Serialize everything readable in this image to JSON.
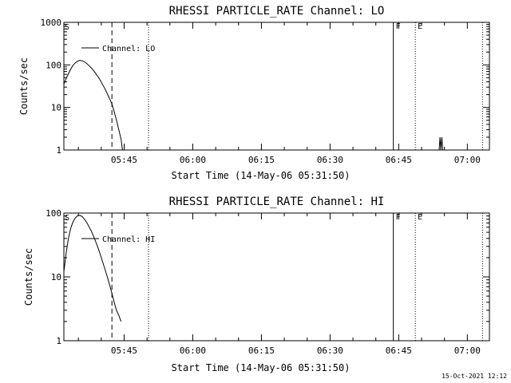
{
  "footer": {
    "timestamp": "15-Oct-2021 12:12"
  },
  "colors": {
    "background": "#ffffff",
    "foreground": "#000000"
  },
  "chart_data": [
    {
      "type": "line",
      "title": "RHESSI PARTICLE_RATE Channel: LO",
      "xlabel": "Start Time (14-May-06 05:31:50)",
      "ylabel": "Counts/sec",
      "yscale": "log",
      "ylim": [
        1,
        1000
      ],
      "yticks": [
        {
          "value": 1,
          "label": "1"
        },
        {
          "value": 10,
          "label": "10"
        },
        {
          "value": 100,
          "label": "100"
        },
        {
          "value": 1000,
          "label": "1000"
        }
      ],
      "xlim_minutes": [
        0,
        93
      ],
      "xticks": [
        {
          "minute": 13.17,
          "label": "05:45"
        },
        {
          "minute": 28.17,
          "label": "06:00"
        },
        {
          "minute": 43.17,
          "label": "06:15"
        },
        {
          "minute": 58.17,
          "label": "06:30"
        },
        {
          "minute": 73.17,
          "label": "06:45"
        },
        {
          "minute": 88.17,
          "label": "07:00"
        }
      ],
      "legend": {
        "label": "Channel: LO",
        "placement": "top-left"
      },
      "series": [
        {
          "name": "Channel: LO",
          "points": [
            {
              "x": 0.0,
              "y": 35
            },
            {
              "x": 0.5,
              "y": 48
            },
            {
              "x": 1.0,
              "y": 62
            },
            {
              "x": 1.5,
              "y": 80
            },
            {
              "x": 2.0,
              "y": 98
            },
            {
              "x": 2.5,
              "y": 112
            },
            {
              "x": 3.0,
              "y": 122
            },
            {
              "x": 3.5,
              "y": 128
            },
            {
              "x": 4.0,
              "y": 125
            },
            {
              "x": 4.5,
              "y": 118
            },
            {
              "x": 5.0,
              "y": 108
            },
            {
              "x": 5.5,
              "y": 96
            },
            {
              "x": 6.0,
              "y": 85
            },
            {
              "x": 6.5,
              "y": 73
            },
            {
              "x": 7.0,
              "y": 62
            },
            {
              "x": 7.5,
              "y": 52
            },
            {
              "x": 8.0,
              "y": 43
            },
            {
              "x": 8.5,
              "y": 34
            },
            {
              "x": 9.0,
              "y": 27
            },
            {
              "x": 9.5,
              "y": 21
            },
            {
              "x": 10.0,
              "y": 16
            },
            {
              "x": 10.5,
              "y": 12
            },
            {
              "x": 11.0,
              "y": 8
            },
            {
              "x": 11.5,
              "y": 5
            },
            {
              "x": 12.0,
              "y": 3
            },
            {
              "x": 12.5,
              "y": 1.8
            },
            {
              "x": 12.8,
              "y": 1
            }
          ],
          "spikes": [
            {
              "x": 82.0,
              "y": 1
            },
            {
              "x": 82.2,
              "y": 2
            },
            {
              "x": 82.4,
              "y": 1
            },
            {
              "x": 82.6,
              "y": 2
            },
            {
              "x": 82.8,
              "y": 1
            }
          ]
        }
      ],
      "markers": [
        {
          "type": "dashed",
          "minute": 10.5,
          "label": ""
        },
        {
          "type": "dotted",
          "minute": 18.5,
          "label": ""
        },
        {
          "type": "solid",
          "minute": 72.0,
          "label": "F"
        },
        {
          "type": "dotted",
          "minute": 76.8,
          "label": "E"
        },
        {
          "type": "dotted",
          "minute": 91.5,
          "label": ""
        }
      ],
      "start_label": "S"
    },
    {
      "type": "line",
      "title": "RHESSI PARTICLE_RATE Channel: HI",
      "xlabel": "Start Time (14-May-06 05:31:50)",
      "ylabel": "Counts/sec",
      "yscale": "log",
      "ylim": [
        1,
        100
      ],
      "yticks": [
        {
          "value": 1,
          "label": "1"
        },
        {
          "value": 10,
          "label": "10"
        },
        {
          "value": 100,
          "label": "100"
        }
      ],
      "xlim_minutes": [
        0,
        93
      ],
      "xticks": [
        {
          "minute": 13.17,
          "label": "05:45"
        },
        {
          "minute": 28.17,
          "label": "06:00"
        },
        {
          "minute": 43.17,
          "label": "06:15"
        },
        {
          "minute": 58.17,
          "label": "06:30"
        },
        {
          "minute": 73.17,
          "label": "06:45"
        },
        {
          "minute": 88.17,
          "label": "07:00"
        }
      ],
      "legend": {
        "label": "Channel: HI",
        "placement": "top-left"
      },
      "series": [
        {
          "name": "Channel: HI",
          "points": [
            {
              "x": 0.0,
              "y": 12
            },
            {
              "x": 0.5,
              "y": 24
            },
            {
              "x": 1.0,
              "y": 40
            },
            {
              "x": 1.5,
              "y": 58
            },
            {
              "x": 2.0,
              "y": 73
            },
            {
              "x": 2.5,
              "y": 84
            },
            {
              "x": 3.0,
              "y": 91
            },
            {
              "x": 3.5,
              "y": 92
            },
            {
              "x": 4.0,
              "y": 88
            },
            {
              "x": 4.5,
              "y": 80
            },
            {
              "x": 5.0,
              "y": 71
            },
            {
              "x": 5.5,
              "y": 61
            },
            {
              "x": 6.0,
              "y": 52
            },
            {
              "x": 6.5,
              "y": 43
            },
            {
              "x": 7.0,
              "y": 35
            },
            {
              "x": 7.5,
              "y": 28
            },
            {
              "x": 8.0,
              "y": 22
            },
            {
              "x": 8.5,
              "y": 17
            },
            {
              "x": 9.0,
              "y": 13
            },
            {
              "x": 9.5,
              "y": 10
            },
            {
              "x": 10.0,
              "y": 7.5
            },
            {
              "x": 10.5,
              "y": 5.5
            },
            {
              "x": 11.0,
              "y": 4.0
            },
            {
              "x": 11.5,
              "y": 3.0
            },
            {
              "x": 12.0,
              "y": 2.5
            },
            {
              "x": 12.5,
              "y": 2.0
            }
          ],
          "spikes": []
        }
      ],
      "markers": [
        {
          "type": "dashed",
          "minute": 10.5,
          "label": ""
        },
        {
          "type": "dotted",
          "minute": 18.5,
          "label": ""
        },
        {
          "type": "solid",
          "minute": 72.0,
          "label": "F"
        },
        {
          "type": "dotted",
          "minute": 76.8,
          "label": "E"
        },
        {
          "type": "dotted",
          "minute": 91.5,
          "label": ""
        }
      ],
      "start_label": "S"
    }
  ]
}
